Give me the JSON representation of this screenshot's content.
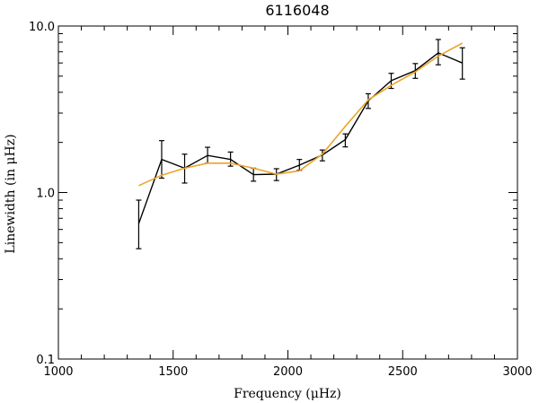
{
  "chart_data": {
    "type": "line",
    "title": "6116048",
    "xlabel": "Frequency (μHz)",
    "ylabel": "Linewidth (in μHz)",
    "x_scale": "linear",
    "y_scale": "log",
    "xlim": [
      1000,
      3000
    ],
    "ylim": [
      0.1,
      10.0
    ],
    "x_ticks": [
      1000,
      1500,
      2000,
      2500,
      3000
    ],
    "x_tick_labels": [
      "1000",
      "1500",
      "2000",
      "2500",
      "3000"
    ],
    "y_ticks": [
      0.1,
      1.0,
      10.0
    ],
    "y_tick_labels": [
      "0.1",
      "1.0",
      "10.0"
    ],
    "series": [
      {
        "kind": "measured",
        "color": "#000000",
        "x": [
          1350,
          1450,
          1550,
          1650,
          1750,
          1850,
          1950,
          2050,
          2150,
          2250,
          2350,
          2450,
          2555,
          2655,
          2760
        ],
        "y": [
          0.65,
          1.58,
          1.4,
          1.67,
          1.58,
          1.28,
          1.29,
          1.46,
          1.68,
          2.08,
          3.55,
          4.7,
          5.4,
          6.9,
          6.0
        ],
        "y_low": [
          0.46,
          1.22,
          1.14,
          1.5,
          1.44,
          1.17,
          1.18,
          1.36,
          1.55,
          1.88,
          3.2,
          4.22,
          4.85,
          5.85,
          4.8
        ],
        "y_high": [
          0.9,
          2.05,
          1.7,
          1.87,
          1.75,
          1.4,
          1.39,
          1.58,
          1.8,
          2.25,
          3.92,
          5.2,
          5.95,
          8.3,
          7.4
        ]
      },
      {
        "kind": "fit",
        "color": "#ECA428",
        "x": [
          1350,
          1450,
          1550,
          1650,
          1750,
          1850,
          1950,
          2050,
          2150,
          2250,
          2350,
          2450,
          2555,
          2655,
          2760
        ],
        "y": [
          1.1,
          1.27,
          1.4,
          1.5,
          1.5,
          1.4,
          1.29,
          1.35,
          1.7,
          2.5,
          3.6,
          4.4,
          5.3,
          6.6,
          7.9
        ]
      }
    ]
  }
}
